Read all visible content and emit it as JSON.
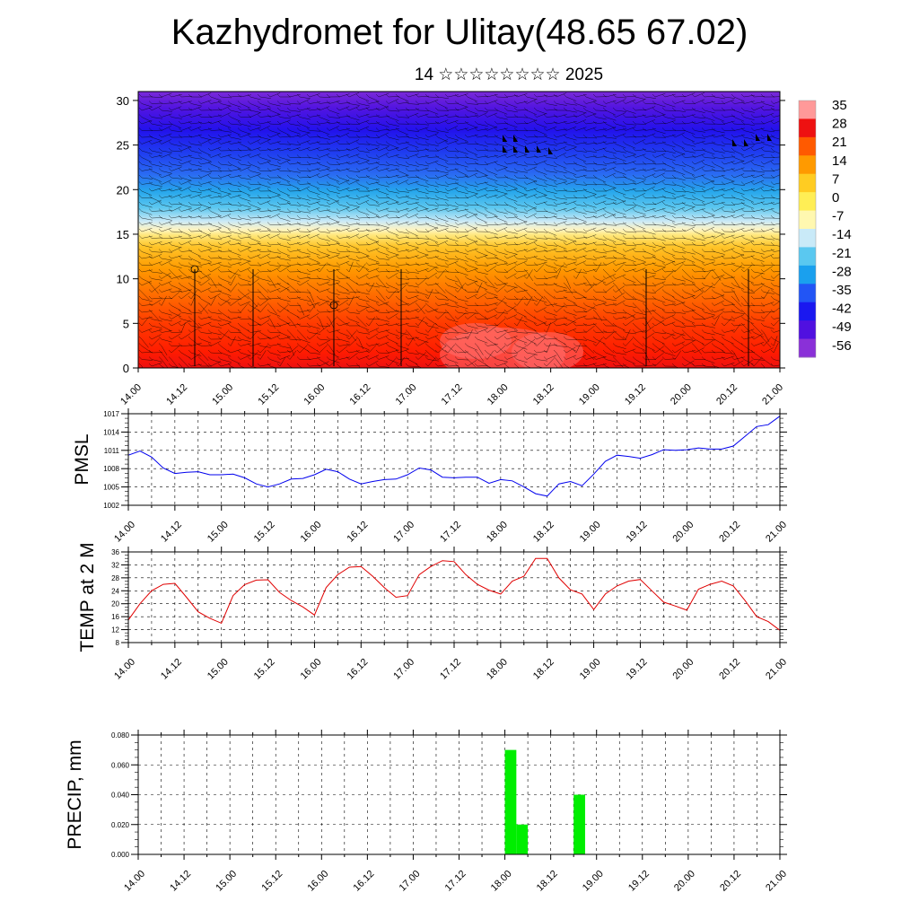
{
  "header": {
    "title": "Kazhydromet for Ulitay(48.65 67.02)",
    "subtitle": "14 ☆☆☆☆☆☆☆☆ 2025"
  },
  "time_labels": [
    "14.00",
    "14.12",
    "15.00",
    "15.12",
    "16.00",
    "16.12",
    "17.00",
    "17.12",
    "18.00",
    "18.12",
    "19.00",
    "19.12",
    "20.00",
    "20.12",
    "21.00"
  ],
  "chart_data": [
    {
      "type": "heatmap",
      "title": "",
      "xlabel": "",
      "ylabel": "",
      "x": [
        "14.00",
        "14.12",
        "15.00",
        "15.12",
        "16.00",
        "16.12",
        "17.00",
        "17.12",
        "18.00",
        "18.12",
        "19.00",
        "19.12",
        "20.00",
        "20.12",
        "21.00"
      ],
      "yticks": [
        "0",
        "5",
        "10",
        "15",
        "20",
        "25",
        "30"
      ],
      "ylim": [
        0,
        31
      ],
      "colorbar": {
        "labels": [
          "35",
          "28",
          "21",
          "14",
          "7",
          "0",
          "-7",
          "-14",
          "-21",
          "-28",
          "-35",
          "-42",
          "-49",
          "-56"
        ],
        "colors": [
          "#ff9999",
          "#ee1111",
          "#ff5a00",
          "#ff9a00",
          "#ffcc22",
          "#ffee55",
          "#fff8b0",
          "#c9eaf8",
          "#5ac8f0",
          "#1aa0ee",
          "#2255f5",
          "#1a18f0",
          "#5010e0",
          "#8a30d8"
        ]
      },
      "overlay": "wind barbs"
    },
    {
      "type": "line",
      "ylabel": "PMSL",
      "xlabel": "",
      "ylim": [
        1002,
        1017
      ],
      "yticks": [
        "1002",
        "1005",
        "1008",
        "1011",
        "1014",
        "1017"
      ],
      "grid": true,
      "color": "#0000ee",
      "x": [
        14.0,
        14.125,
        14.25,
        14.375,
        14.5,
        14.625,
        14.75,
        14.875,
        15.0,
        15.125,
        15.25,
        15.375,
        15.5,
        15.625,
        15.75,
        15.875,
        16.0,
        16.125,
        16.25,
        16.375,
        16.5,
        16.625,
        16.75,
        16.875,
        17.0,
        17.125,
        17.25,
        17.375,
        17.5,
        17.625,
        17.75,
        17.875,
        18.0,
        18.125,
        18.25,
        18.375,
        18.5,
        18.625,
        18.75,
        18.875,
        19.0,
        19.125,
        19.25,
        19.375,
        19.5,
        19.625,
        19.75,
        19.875,
        20.0,
        20.125,
        20.25,
        20.375,
        20.5,
        20.625,
        20.75,
        20.875
      ],
      "values": [
        1010.2,
        1010.9,
        1009.9,
        1008.1,
        1007.2,
        1007.4,
        1007.5,
        1007.0,
        1007.0,
        1007.1,
        1006.5,
        1005.5,
        1005.0,
        1005.5,
        1006.3,
        1006.4,
        1007.0,
        1007.9,
        1007.5,
        1006.3,
        1005.5,
        1005.9,
        1006.2,
        1006.3,
        1007.0,
        1008.1,
        1007.8,
        1006.6,
        1006.5,
        1006.6,
        1006.6,
        1005.6,
        1006.2,
        1006.0,
        1005.0,
        1003.9,
        1003.5,
        1005.5,
        1005.9,
        1005.2,
        1007.1,
        1009.2,
        1010.2,
        1010.0,
        1009.7,
        1010.3,
        1011.1,
        1011.0,
        1011.1,
        1011.4,
        1011.2,
        1011.2,
        1011.7,
        1013.3,
        1014.9,
        1015.2
      ],
      "x_extra": [
        21.0
      ],
      "values_extra": [
        1016.6
      ]
    },
    {
      "type": "line",
      "ylabel": "TEMP at 2 M",
      "xlabel": "",
      "ylim": [
        8,
        36
      ],
      "yticks": [
        "8",
        "12",
        "16",
        "20",
        "24",
        "28",
        "32",
        "36"
      ],
      "grid": true,
      "color": "#e00000",
      "x": [
        14.0,
        14.125,
        14.25,
        14.375,
        14.5,
        14.625,
        14.75,
        14.875,
        15.0,
        15.125,
        15.25,
        15.375,
        15.5,
        15.625,
        15.75,
        15.875,
        16.0,
        16.125,
        16.25,
        16.375,
        16.5,
        16.625,
        16.75,
        16.875,
        17.0,
        17.125,
        17.25,
        17.375,
        17.5,
        17.625,
        17.75,
        17.875,
        18.0,
        18.125,
        18.25,
        18.375,
        18.5,
        18.625,
        18.75,
        18.875,
        19.0,
        19.125,
        19.25,
        19.375,
        19.5,
        19.625,
        19.75,
        19.875,
        20.0,
        20.125,
        20.25,
        20.375,
        20.5,
        20.625,
        20.75,
        20.875,
        21.0
      ],
      "values": [
        15.0,
        20.0,
        24.0,
        26.0,
        26.3,
        22.0,
        17.5,
        15.5,
        14.0,
        22.5,
        25.9,
        27.3,
        27.4,
        23.5,
        21.0,
        19.0,
        16.5,
        25.0,
        29.0,
        31.3,
        31.5,
        28.5,
        25.0,
        22.0,
        22.5,
        29.0,
        31.5,
        33.3,
        33.0,
        29.0,
        26.0,
        24.2,
        23.0,
        27.0,
        28.5,
        34.0,
        34.0,
        28.0,
        24.3,
        23.0,
        18.2,
        23.0,
        25.5,
        27.0,
        27.5,
        24.0,
        20.5,
        19.3,
        18.0,
        24.5,
        26.0,
        27.0,
        25.5,
        21.0,
        16.0,
        14.5,
        11.8
      ]
    },
    {
      "type": "bar",
      "ylabel": "PRECIP, mm",
      "xlabel": "",
      "ylim": [
        0,
        0.08
      ],
      "yticks": [
        "0.000",
        "0.020",
        "0.040",
        "0.060",
        "0.080"
      ],
      "grid": true,
      "color": "#00ee00",
      "x": [
        18.0,
        18.125,
        18.75
      ],
      "values": [
        0.07,
        0.02,
        0.04
      ]
    }
  ]
}
